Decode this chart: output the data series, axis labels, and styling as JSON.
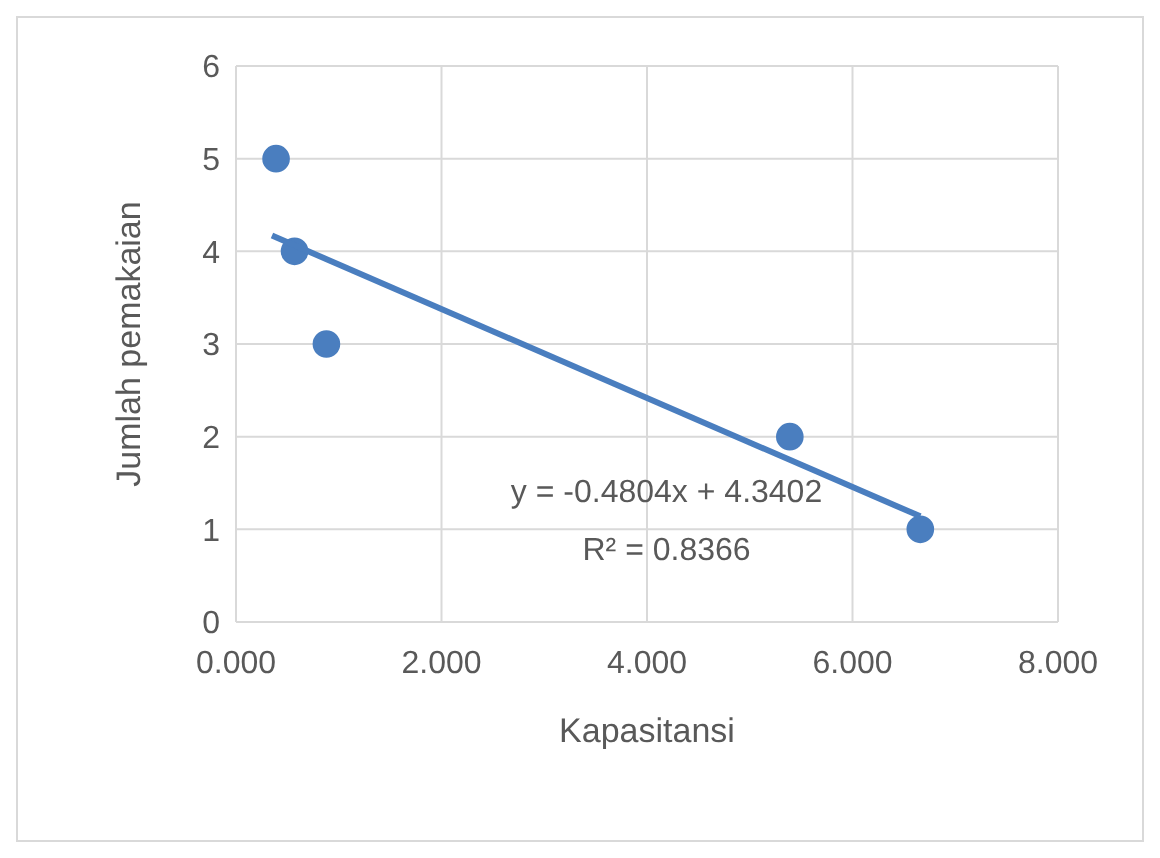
{
  "chart_data": {
    "type": "scatter",
    "xlabel": "Kapasitansi",
    "ylabel": "Jumlah pemakaian",
    "series": [
      {
        "color": "#4a7ebf",
        "x": [
          0.39,
          0.57,
          0.88,
          5.39,
          6.66
        ],
        "values": [
          5,
          4,
          3,
          2,
          1
        ]
      },
      {
        "type": "line",
        "marker": "none",
        "color": "#4a7ebf",
        "x": [
          0.35,
          6.66
        ],
        "values": [
          4.17,
          1.14
        ]
      }
    ],
    "xlim": [
      0,
      8
    ],
    "xticks": [
      {
        "value": 0,
        "label": "0.000"
      },
      {
        "value": 2,
        "label": "2.000"
      },
      {
        "value": 4,
        "label": "4.000"
      },
      {
        "value": 6,
        "label": "6.000"
      },
      {
        "value": 8,
        "label": "8.000"
      }
    ],
    "ylim": [
      0,
      6
    ],
    "yticks": [
      0,
      1,
      2,
      3,
      4,
      5,
      6
    ],
    "grid": true,
    "marker": "circle",
    "line_style": "solid",
    "annotations": [
      "y = -0.4804x + 4.3402",
      "R² = 0.8366"
    ]
  }
}
